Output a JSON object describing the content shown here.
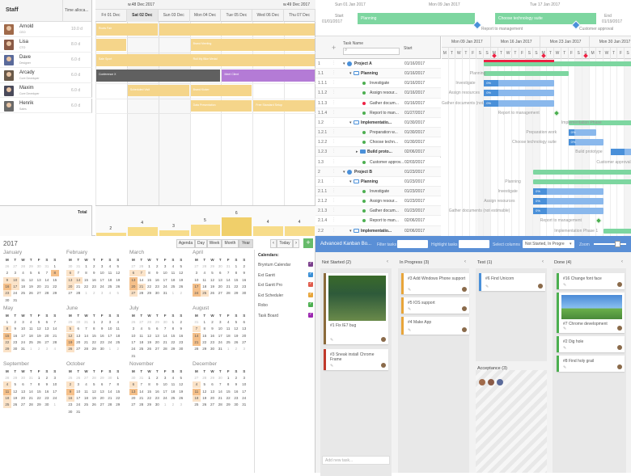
{
  "scheduler": {
    "staff_header": "Staff",
    "time_header": "Time alloca...",
    "total_label": "Total",
    "weeks": [
      "w.48 Dec 2017",
      "w.49 Dec 2017"
    ],
    "days": [
      "Fri 01 Dec",
      "Sat 02 Dec",
      "Sun 03 Dec",
      "Mon 04 Dec",
      "Tue 05 Dec",
      "Wed 06 Dec",
      "Thu 07 Dec"
    ],
    "staff": [
      {
        "name": "Arnold",
        "role": "CEO",
        "hours": "10.0 d",
        "avatar": "#a06a4a"
      },
      {
        "name": "Lisa",
        "role": "CTO",
        "hours": "8.0 d",
        "avatar": "#8a5a46"
      },
      {
        "name": "Dave",
        "role": "Designer",
        "hours": "6.0 d",
        "avatar": "#5a6a9a"
      },
      {
        "name": "Arcady",
        "role": "Core Developer",
        "hours": "6.0 d",
        "avatar": "#6a5a4a"
      },
      {
        "name": "Maxim",
        "role": "Core Developer",
        "hours": "6.0 d",
        "avatar": "#4a4a5a"
      },
      {
        "name": "Henrik",
        "role": "Sales",
        "hours": "6.0 d",
        "avatar": "#6a6a6a"
      }
    ],
    "events": [
      "Roots Fair",
      "Brand Meeting",
      "Sale Sport",
      "Roll My Bike Medal",
      "Conference X",
      "Meet Client",
      "Scheduled Visit",
      "Brand Kicker",
      "Data Presentation",
      "Free Standard Setup"
    ],
    "totals": [
      "2",
      "4",
      "3",
      "5",
      "6",
      "4",
      "4"
    ]
  },
  "gantt": {
    "start_label": "Start",
    "start_date": "01/01/2017",
    "end_label": "End",
    "end_date": "01/19/2017",
    "timeline_top": [
      "Sun 01 Jan 2017",
      "Mon 09 Jan 2017",
      "Tue 17 Jan 2017"
    ],
    "milestones": [
      "Report to management",
      "Customer approval"
    ],
    "top_bars": [
      "Planning",
      "Choose technology suite"
    ],
    "col_task": "Task Name",
    "col_start": "Start",
    "week_headers": [
      "Mon 09 Jan 2017",
      "Mon 16 Jan 2017",
      "Mon 23 Jan 2017",
      "Mon 30 Jan 2017"
    ],
    "day_letters": [
      "M",
      "T",
      "W",
      "T",
      "F",
      "S",
      "S"
    ],
    "rows": [
      {
        "id": "1",
        "name": "Project A",
        "start": "01/16/2017"
      },
      {
        "id": "1.1",
        "name": "Planning",
        "start": "01/16/2017"
      },
      {
        "id": "1.1.1",
        "name": "Investigate",
        "start": "01/16/2017"
      },
      {
        "id": "1.1.2",
        "name": "Assign resour...",
        "start": "01/16/2017"
      },
      {
        "id": "1.1.3",
        "name": "Gather docum...",
        "start": "01/16/2017"
      },
      {
        "id": "1.1.4",
        "name": "Report to man...",
        "start": "01/27/2017"
      },
      {
        "id": "1.2",
        "name": "Implementatio...",
        "start": "01/30/2017"
      },
      {
        "id": "1.2.1",
        "name": "Preparation w...",
        "start": "01/30/2017"
      },
      {
        "id": "1.2.2",
        "name": "Choose techn...",
        "start": "01/30/2017"
      },
      {
        "id": "1.2.3",
        "name": "Build proto...",
        "start": "02/06/2017"
      },
      {
        "id": "1.3",
        "name": "Customer approv...",
        "start": "02/03/2017"
      },
      {
        "id": "2",
        "name": "Project B",
        "start": "01/23/2017"
      },
      {
        "id": "2.1",
        "name": "Planning",
        "start": "01/23/2017"
      },
      {
        "id": "2.1.1",
        "name": "Investigate",
        "start": "01/23/2017"
      },
      {
        "id": "2.1.2",
        "name": "Assign resour...",
        "start": "01/23/2017"
      },
      {
        "id": "2.1.3",
        "name": "Gather docum...",
        "start": "01/23/2017"
      },
      {
        "id": "2.1.4",
        "name": "Report to man...",
        "start": "02/06/2017"
      },
      {
        "id": "2.2",
        "name": "Implementatio...",
        "start": "02/06/2017"
      }
    ],
    "bar_labels": [
      "Planning",
      "Investigate",
      "Assign resources",
      "Gather documents (not...",
      "Report to management",
      "Implementation Phase",
      "Preparation work",
      "Choose technology suite",
      "Build prototype",
      "Customer approval",
      "Planning",
      "Investigate",
      "Assign resources",
      "Gather documents (not estimable)",
      "Report to management",
      "Implementation Phase 1"
    ],
    "pcts": [
      "0%",
      "0%",
      "0%",
      "0%",
      "0%",
      "0%",
      "0%",
      "0%",
      "0%",
      "0%",
      "0%"
    ]
  },
  "calendar": {
    "year": "2017",
    "views": [
      "Agenda",
      "Day",
      "Week",
      "Month",
      "Year"
    ],
    "active_view": "Year",
    "today_label": "Today",
    "prev_icon": "‹",
    "next_icon": "›",
    "add_icon": "+",
    "calendars_title": "Calendars:",
    "calendars": [
      {
        "name": "Bryntum Calendar",
        "color": "#7b3f8c"
      },
      {
        "name": "Ext Gantt",
        "color": "#3a8fd6"
      },
      {
        "name": "Ext Gantt Pro",
        "color": "#e05b4b"
      },
      {
        "name": "Ext Scheduler",
        "color": "#e8a53a"
      },
      {
        "name": "Robo",
        "color": "#4caf50"
      },
      {
        "name": "Task Board",
        "color": "#9c27b0"
      }
    ],
    "months": [
      "January",
      "February",
      "March",
      "April",
      "May",
      "June",
      "July",
      "August",
      "September",
      "October",
      "November",
      "December"
    ],
    "dow": [
      "M",
      "T",
      "W",
      "T",
      "F",
      "S",
      "S"
    ]
  },
  "kanban": {
    "title": "Advanced Kanban Bo...",
    "filter_label": "Filter tasks",
    "highlight_label": "Highlight tasks",
    "columns_label": "Select columns",
    "state_select": "Not Started, In Progre",
    "zoom_label": "Zoom",
    "columns": [
      {
        "title": "Not Started (2)"
      },
      {
        "title": "In Progress (3)"
      },
      {
        "title": "Test (1)"
      },
      {
        "title": "Done (4)"
      }
    ],
    "cards": {
      "c1": "#1 Fix IE7 bug",
      "c2": "#3 Sneak install Chrome Frame",
      "c3": "#3 Add Windows Phone support",
      "c4": "#5 IOS support",
      "c5": "#4 Make App",
      "c6": "#6 Find Unicorn",
      "c7": "#16 Change font face",
      "c8": "#7 Chrome development",
      "c9": "#2 Dig hole",
      "c10": "#8 Find holy grail"
    },
    "acceptance": "Acceptance (3)",
    "new_task": "Add new task..."
  }
}
